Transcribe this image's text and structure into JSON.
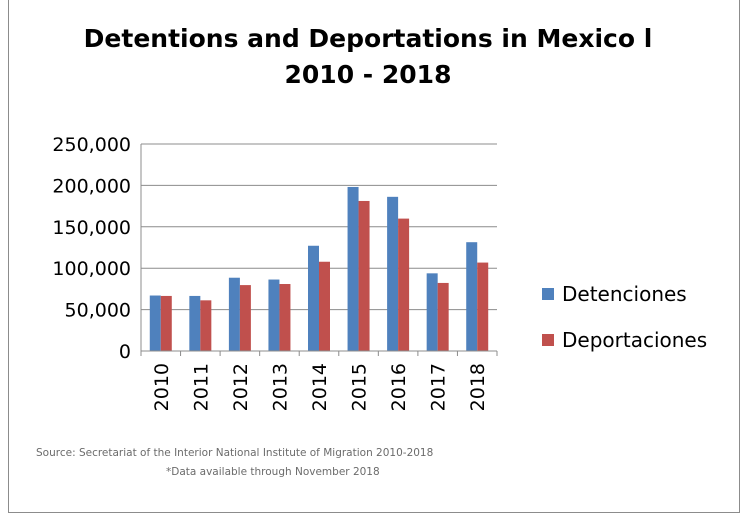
{
  "chart_data": {
    "type": "bar",
    "title_lines": [
      "Detentions and Deportations in Mexico l",
      "2010 - 2018"
    ],
    "categories": [
      "2010",
      "2011",
      "2012",
      "2013",
      "2014",
      "2015",
      "2016",
      "2017",
      "2018"
    ],
    "series": [
      {
        "name": "Detenciones",
        "color": "#4f81bd",
        "values": [
          67000,
          66500,
          88500,
          86300,
          127100,
          198100,
          186200,
          93800,
          131400
        ]
      },
      {
        "name": "Deportaciones",
        "color": "#c0504d",
        "values": [
          66500,
          61200,
          79600,
          80900,
          107800,
          181200,
          159900,
          82200,
          106800
        ]
      }
    ],
    "ylim": [
      0,
      250000
    ],
    "yticks": [
      0,
      50000,
      100000,
      150000,
      200000,
      250000
    ],
    "ytick_labels": [
      "0",
      "50,000",
      "100,000",
      "150,000",
      "200,000",
      "250,000"
    ],
    "grid": true,
    "legend_position": "right",
    "source_lines": [
      "Source: Secretariat of the Interior National Institute of Migration 2010-2018",
      "*Data available through November 2018"
    ]
  }
}
